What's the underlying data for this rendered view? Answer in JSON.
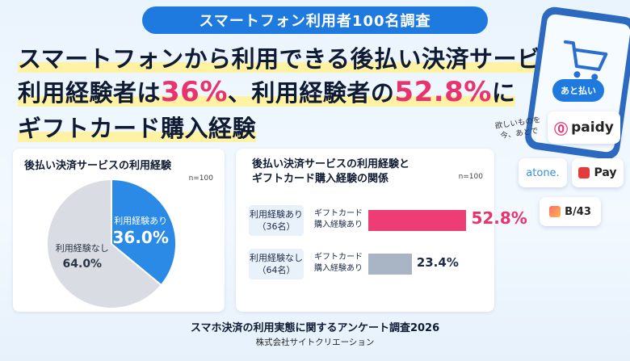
{
  "header": {
    "pill": "スマートフォン利用者100名調査",
    "line1": "スマートフォンから利用できる後払い決済サービス",
    "line2_a": "利用経験者は",
    "line2_b": "36%",
    "line2_c": "、利用経験者の",
    "line2_d": "52.8%",
    "line2_e": "に",
    "line3": "ギフトカード購入経験"
  },
  "chart_data": [
    {
      "type": "pie",
      "title": "後払い決済サービスの利用経験",
      "note": "n=100",
      "slices": [
        {
          "name": "利用経験あり",
          "value": 36.0,
          "display": "36.0%",
          "color": "#2a8ae6"
        },
        {
          "name": "利用経験なし",
          "value": 64.0,
          "display": "64.0%",
          "color": "#d9dde3"
        }
      ]
    },
    {
      "type": "bar",
      "title_line1": "後払い決済サービスの利用経験と",
      "title_line2": "ギフトカード購入経験の関係",
      "note": "n=100",
      "xlim": [
        0,
        100
      ],
      "groups": [
        {
          "label": "利用経験あり",
          "sub": "（36名）",
          "category_line1": "ギフトカード",
          "category_line2": "購入経験あり",
          "value": 52.8,
          "display": "52.8%",
          "color": "#ee3d74"
        },
        {
          "label": "利用経験なし",
          "sub": "（64名）",
          "category_line1": "ギフトカード",
          "category_line2": "購入経験あり",
          "value": 23.4,
          "display": "23.4%",
          "color": "#a9b4c4"
        }
      ]
    }
  ],
  "footer": {
    "survey": "スマホ決済の利用実態に関するアンケート調査2026",
    "company": "株式会社サイトクリエーション"
  },
  "illustration": {
    "bubble": "あと払い",
    "note_line1": "欲しいものを",
    "note_line2": "今、あとで",
    "logos": [
      "paidy",
      "atone.",
      "Pay",
      "B/43"
    ]
  }
}
